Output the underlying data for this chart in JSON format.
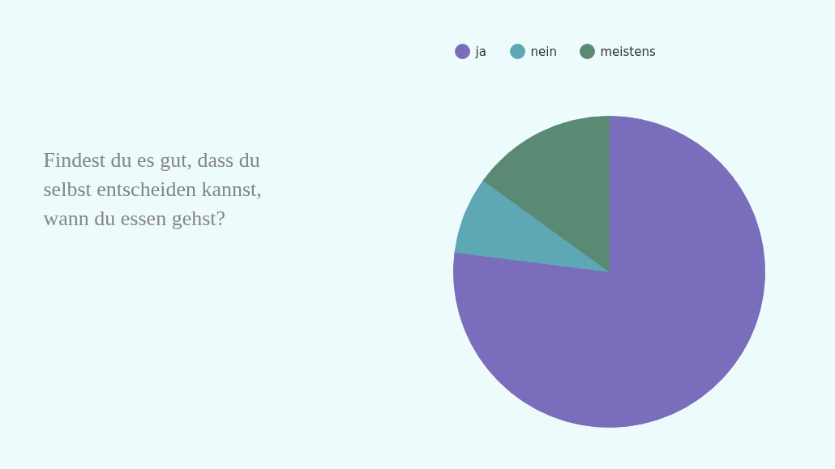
{
  "chart_data": {
    "type": "pie",
    "title": "Findest du es gut, dass du selbst entscheiden kannst, wann du essen gehst?",
    "categories": [
      "ja",
      "nein",
      "meistens"
    ],
    "values": [
      77,
      8,
      15
    ],
    "colors": [
      "#7a6dbb",
      "#5ea7b5",
      "#5a8a74"
    ],
    "legend": "top"
  }
}
